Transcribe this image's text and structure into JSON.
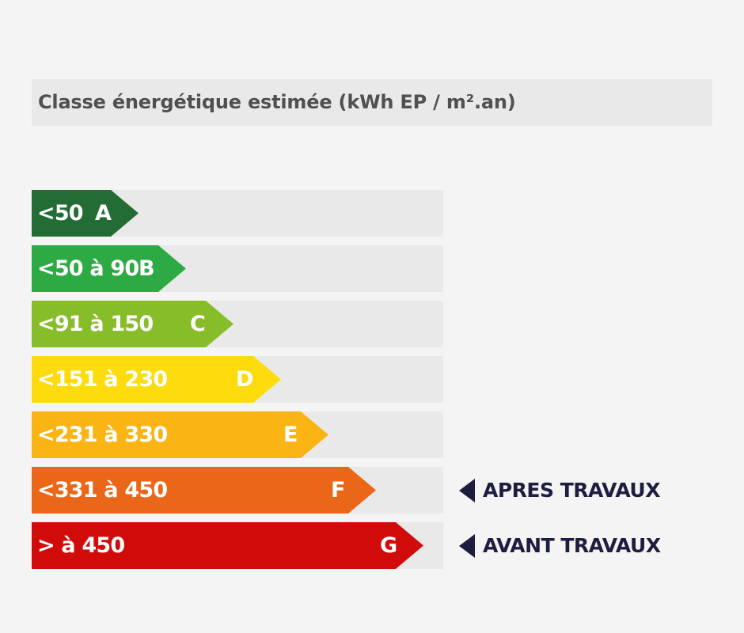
{
  "title": "Classe énergétique estimée (kWh EP / m².an)",
  "chart_data": {
    "type": "bar",
    "title": "Classe énergétique estimée (kWh EP / m².an)",
    "categories": [
      "A",
      "B",
      "C",
      "D",
      "E",
      "F",
      "G"
    ],
    "ranges": [
      "<50",
      "<50 à 90",
      "<91 à 150",
      "<151 à 230",
      "<231 à 330",
      "<331 à 450",
      "> à 450"
    ],
    "colors": [
      "#236c35",
      "#2daa44",
      "#88bd2a",
      "#fedb0d",
      "#fab414",
      "#ea6618",
      "#d10a0a"
    ],
    "markers": [
      {
        "category": "F",
        "label": "APRES TRAVAUX",
        "color": "#1d1d3f"
      },
      {
        "category": "G",
        "label": "AVANT TRAVAUX",
        "color": "#1d1d3f"
      }
    ]
  }
}
